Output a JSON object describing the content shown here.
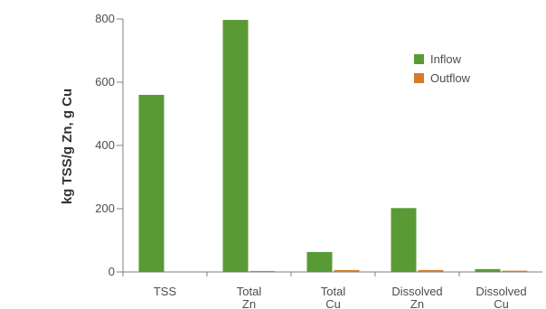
{
  "chart_data": {
    "type": "bar",
    "title": "",
    "xlabel": "",
    "ylabel": "kg TSS/g Zn, g Cu",
    "ylim": [
      0,
      800
    ],
    "yticks": [
      0,
      200,
      400,
      600,
      800
    ],
    "categories": [
      "TSS",
      "Total Zn",
      "Total Cu",
      "Dissolved Zn",
      "Dissolved Cu"
    ],
    "series": [
      {
        "name": "Inflow",
        "color": "#5a9a34",
        "values": [
          560,
          797,
          63,
          202,
          9
        ]
      },
      {
        "name": "Outflow",
        "color": "#d57a2a",
        "values": [
          0,
          3,
          6,
          6,
          4
        ]
      }
    ],
    "grid": false,
    "legend_position": "top-right"
  }
}
